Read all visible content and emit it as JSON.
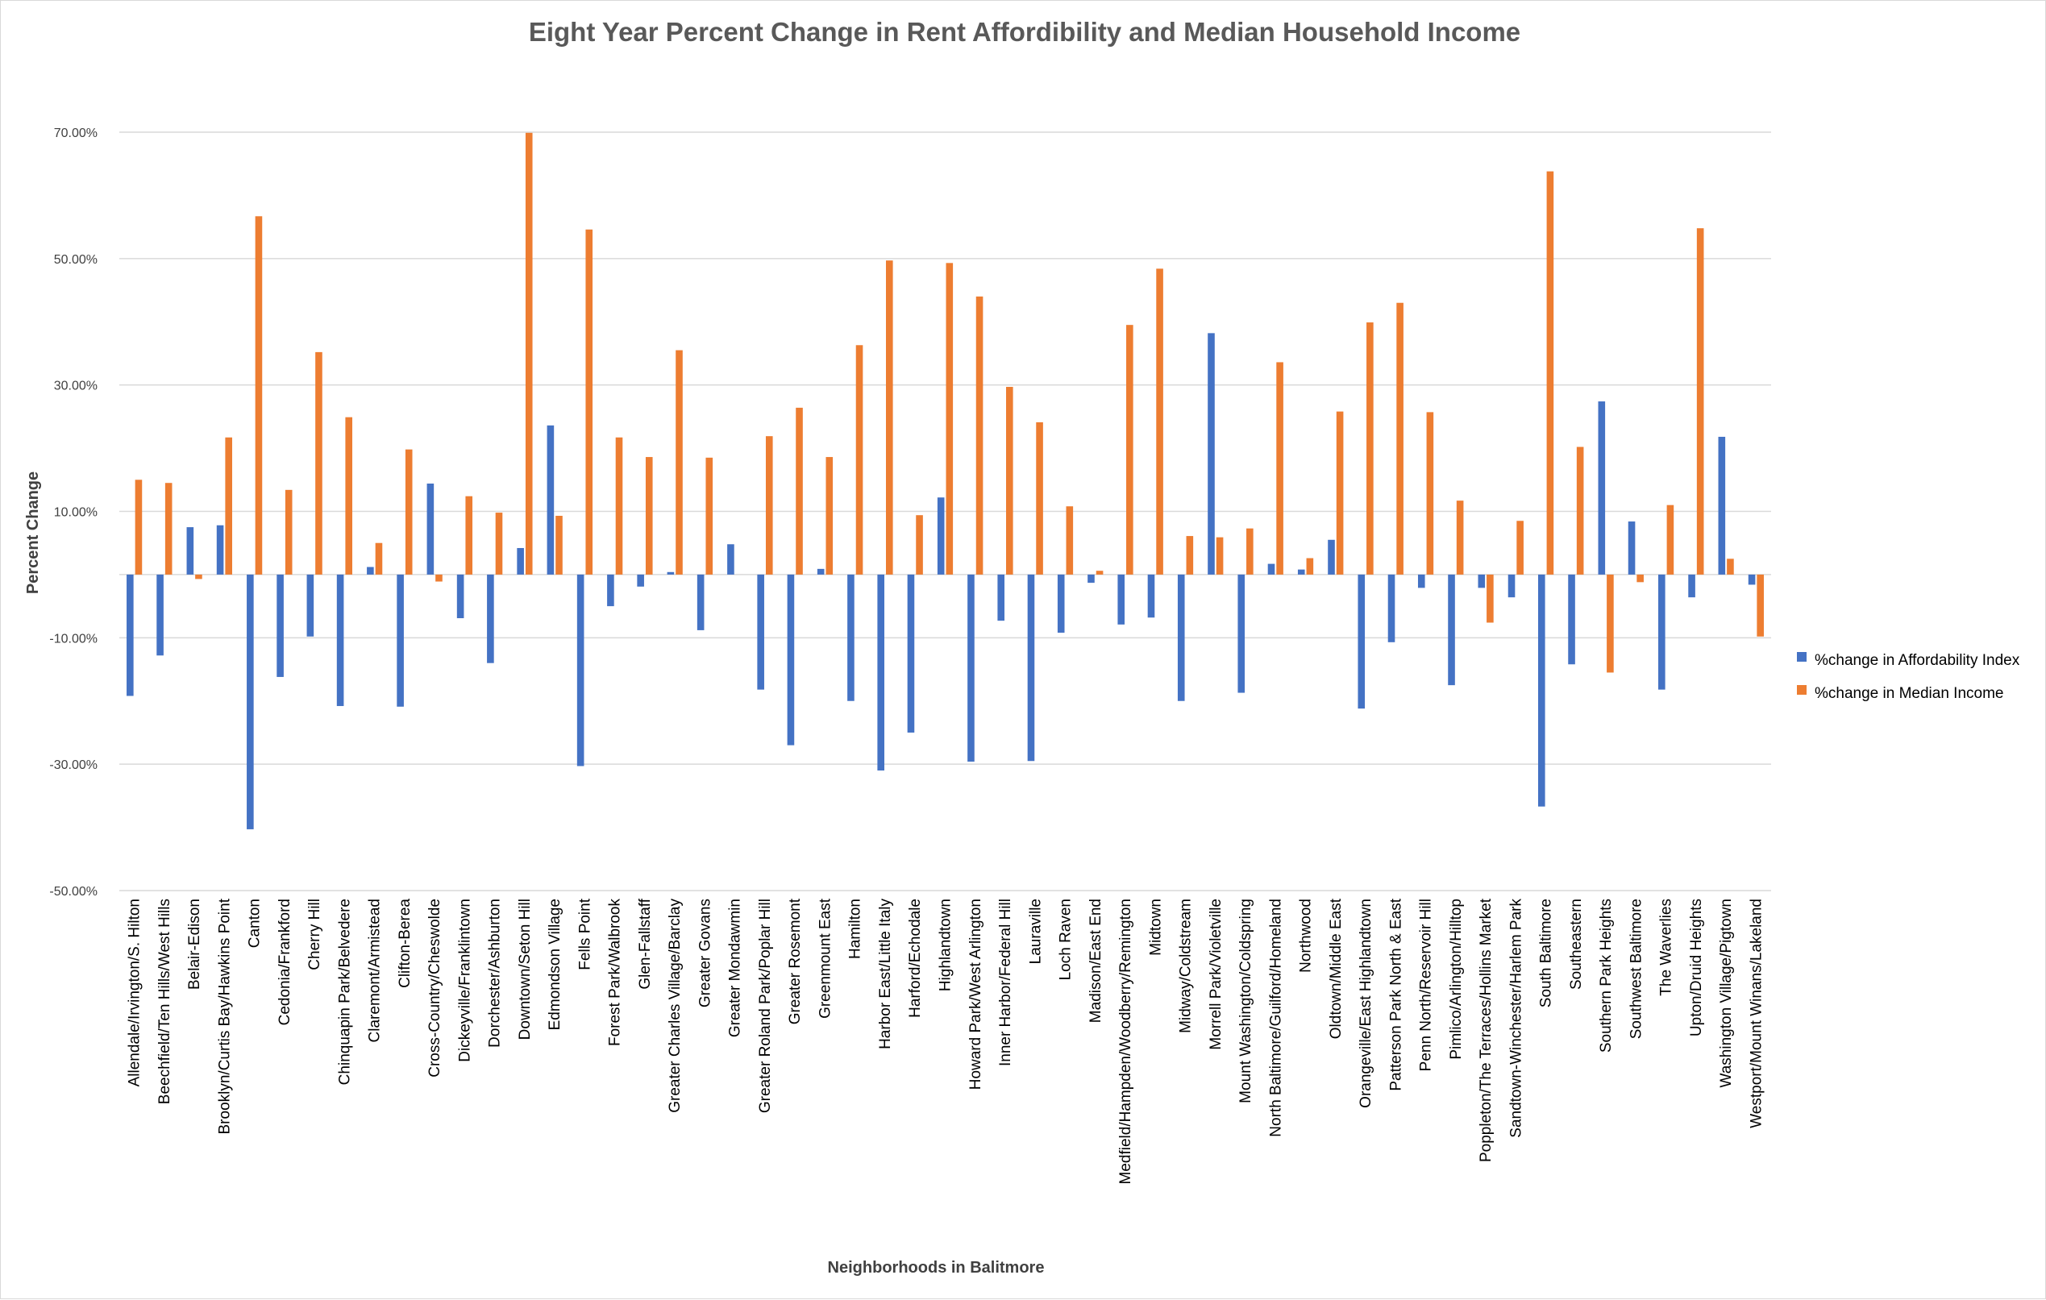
{
  "chart_data": {
    "type": "bar",
    "title": "Eight Year Percent Change in Rent Affordibility and Median Household Income",
    "xlabel": "Neighborhoods in Balitmore",
    "ylabel": "Percent Change",
    "ylim": [
      -50,
      70
    ],
    "yticks": [
      -50,
      -30,
      -10,
      10,
      30,
      50,
      70
    ],
    "ytick_labels": [
      "-50.00%",
      "-30.00%",
      "-10.00%",
      "10.00%",
      "30.00%",
      "50.00%",
      "70.00%"
    ],
    "grid": true,
    "legend_position": "right",
    "colors": [
      "#4472c4",
      "#ed7d31"
    ],
    "categories": [
      "Allendale/Irvington/S. Hilton",
      "Beechfield/Ten Hills/West Hills",
      "Belair-Edison",
      "Brooklyn/Curtis Bay/Hawkins Point",
      "Canton",
      "Cedonia/Frankford",
      "Cherry Hill",
      "Chinquapin Park/Belvedere",
      "Claremont/Armistead",
      "Clifton-Berea",
      "Cross-Country/Cheswolde",
      "Dickeyville/Franklintown",
      "Dorchester/Ashburton",
      "Downtown/Seton Hill",
      "Edmondson Village",
      "Fells Point",
      "Forest Park/Walbrook",
      "Glen-Fallstaff",
      "Greater Charles Village/Barclay",
      "Greater Govans",
      "Greater Mondawmin",
      "Greater Roland Park/Poplar Hill",
      "Greater Rosemont",
      "Greenmount East",
      "Hamilton",
      "Harbor East/Little Italy",
      "Harford/Echodale",
      "Highlandtown",
      "Howard Park/West Arlington",
      "Inner Harbor/Federal Hill",
      "Lauraville",
      "Loch Raven",
      "Madison/East End",
      "Medfield/Hampden/Woodberry/Remington",
      "Midtown",
      "Midway/Coldstream",
      "Morrell Park/Violetville",
      "Mount Washington/Coldspring",
      "North Baltimore/Guilford/Homeland",
      "Northwood",
      "Oldtown/Middle East",
      "Orangeville/East Highlandtown",
      "Patterson Park North & East",
      "Penn North/Reservoir Hill",
      "Pimlico/Arlington/Hilltop",
      "Poppleton/The Terraces/Hollins Market",
      "Sandtown-Winchester/Harlem Park",
      "South Baltimore",
      "Southeastern",
      "Southern Park Heights",
      "Southwest Baltimore",
      "The Waverlies",
      "Upton/Druid Heights",
      "Washington Village/Pigtown",
      "Westport/Mount Winans/Lakeland"
    ],
    "series": [
      {
        "name": "%change in Affordability Index",
        "color": "#4472c4",
        "values": [
          -19.2,
          -12.8,
          7.5,
          7.8,
          -40.3,
          -16.2,
          -9.8,
          -20.8,
          1.2,
          -20.9,
          14.4,
          -6.9,
          -14.0,
          4.2,
          23.6,
          -30.3,
          -5.0,
          -1.9,
          0.4,
          -8.8,
          4.8,
          -18.2,
          -27.0,
          0.9,
          -20.0,
          -31.0,
          -25.0,
          12.2,
          -29.6,
          -7.3,
          -29.5,
          -9.2,
          -1.3,
          -7.9,
          -6.8,
          -20.0,
          38.2,
          -18.7,
          1.7,
          0.8,
          5.5,
          -21.2,
          -10.7,
          -2.1,
          -17.5,
          -2.1,
          -3.6,
          -36.7,
          -14.2,
          27.4,
          8.4,
          -18.2,
          -3.6,
          21.8,
          -1.6
        ]
      },
      {
        "name": "%change in Median Income",
        "color": "#ed7d31",
        "values": [
          15.0,
          14.5,
          -0.7,
          21.7,
          56.7,
          13.4,
          35.2,
          24.9,
          5.0,
          19.8,
          -1.1,
          12.4,
          9.8,
          69.9,
          9.3,
          54.6,
          21.7,
          18.6,
          35.5,
          18.5,
          0.0,
          21.9,
          26.4,
          18.6,
          36.3,
          49.7,
          9.4,
          49.3,
          44.0,
          29.7,
          24.1,
          10.8,
          0.6,
          39.5,
          48.4,
          6.1,
          5.9,
          7.3,
          33.6,
          2.6,
          25.8,
          39.9,
          43.0,
          25.7,
          11.7,
          -7.6,
          8.5,
          63.8,
          20.2,
          -15.5,
          -1.2,
          11.0,
          54.8,
          2.5,
          -9.8
        ]
      }
    ]
  }
}
